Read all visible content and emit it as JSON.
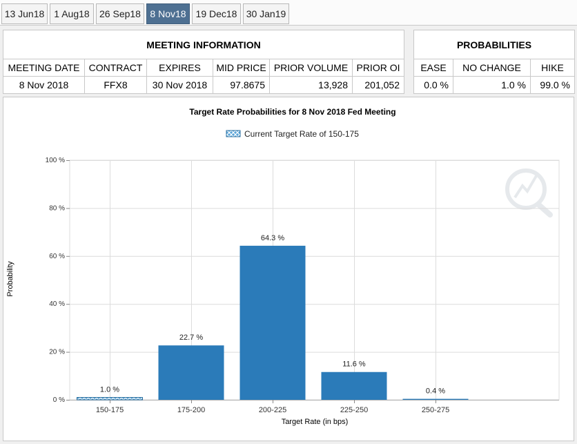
{
  "tabs": [
    {
      "label": "13 Jun18",
      "active": false
    },
    {
      "label": "1 Aug18",
      "active": false
    },
    {
      "label": "26 Sep18",
      "active": false
    },
    {
      "label": "8 Nov18",
      "active": true
    },
    {
      "label": "19 Dec18",
      "active": false
    },
    {
      "label": "30 Jan19",
      "active": false
    }
  ],
  "meeting_info": {
    "title": "MEETING INFORMATION",
    "columns": [
      "MEETING DATE",
      "CONTRACT",
      "EXPIRES",
      "MID PRICE",
      "PRIOR VOLUME",
      "PRIOR OI"
    ],
    "values": [
      "8 Nov 2018",
      "FFX8",
      "30 Nov 2018",
      "97.8675",
      "13,928",
      "201,052"
    ]
  },
  "probabilities": {
    "title": "PROBABILITIES",
    "columns": [
      "EASE",
      "NO CHANGE",
      "HIKE"
    ],
    "values": [
      "0.0 %",
      "1.0 %",
      "99.0 %"
    ]
  },
  "colors": {
    "bar": "#2b7bb9",
    "current_bar": "#5aa5d8",
    "active_tab": "#4e7092"
  },
  "chart_data": {
    "type": "bar",
    "title": "Target Rate Probabilities for 8 Nov 2018 Fed Meeting",
    "legend": {
      "label": "Current Target Rate of 150-175",
      "placement": "top-center"
    },
    "xlabel": "Target Rate (in bps)",
    "ylabel": "Probability",
    "categories": [
      "150-175",
      "175-200",
      "200-225",
      "225-250",
      "250-275"
    ],
    "values": [
      1.0,
      22.7,
      64.3,
      11.6,
      0.4
    ],
    "data_labels": [
      "1.0 %",
      "22.7 %",
      "64.3 %",
      "11.6 %",
      "0.4 %"
    ],
    "current_category": "150-175",
    "ylim": [
      0,
      100
    ],
    "yticks": [
      0,
      20,
      40,
      60,
      80,
      100
    ],
    "ytick_labels": [
      "0 %",
      "20 %",
      "40 %",
      "60 %",
      "80 %",
      "100 %"
    ],
    "grid": true
  }
}
